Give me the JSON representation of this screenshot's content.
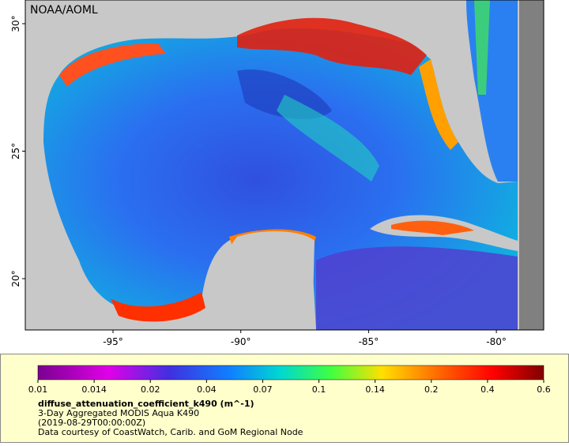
{
  "map": {
    "attribution": "NOAA/AOML",
    "lat_ticks": [
      "30°",
      "25°",
      "20°"
    ],
    "lon_ticks": [
      "-95°",
      "-90°",
      "-85°",
      "-80°"
    ]
  },
  "colorbar": {
    "ticks": [
      "0.01",
      "0.014",
      "0.02",
      "0.04",
      "0.07",
      "0.1",
      "0.14",
      "0.2",
      "0.4",
      "0.6"
    ],
    "variable": "diffuse_attenuation_coefficient_k490 (m^-1)",
    "description": "3-Day Aggregated MODIS Aqua K490",
    "time": "(2019-08-29T00:00:00Z)",
    "credit": "Data courtesy of CoastWatch, Carib. and GoM Regional Node"
  }
}
